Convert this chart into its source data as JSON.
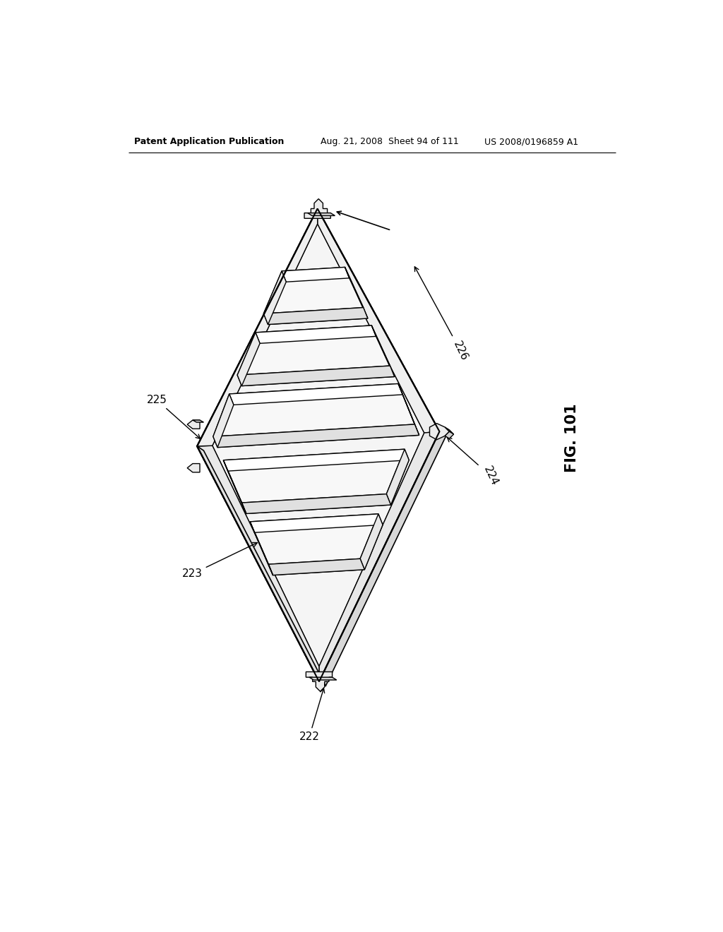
{
  "bg_color": "#ffffff",
  "line_color": "#000000",
  "header_left": "Patent Application Publication",
  "header_mid": "Aug. 21, 2008  Sheet 94 of 111",
  "header_right": "US 2008/0196859 A1",
  "fig_label": "FIG. 101",
  "lw_main": 1.5,
  "lw_thin": 1.0,
  "lw_edge": 1.2,
  "plate_color": "#f2f2f2",
  "plate_edge_color": "#d8d8d8",
  "fin_color": "#f8f8f8",
  "fin_side_color": "#e0e0e0",
  "fin_top_color": "#f0f0f0",
  "tab_color": "#ececec"
}
